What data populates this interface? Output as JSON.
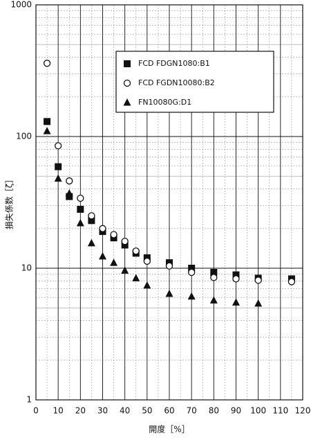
{
  "chart_data": {
    "type": "scatter",
    "log_y": true,
    "grid": true,
    "xlabel": "開度［%］",
    "ylabel": "損失係数［ζ］",
    "xlim": [
      0,
      120
    ],
    "xticks": [
      0,
      10,
      20,
      30,
      40,
      50,
      60,
      70,
      80,
      90,
      100,
      110,
      120
    ],
    "ylim": [
      1,
      1000
    ],
    "yticks": [
      1,
      10,
      100,
      1000
    ],
    "series": [
      {
        "name": "FCD FDGN1080:B1",
        "color": "#111111",
        "marker": "square",
        "x": [
          5,
          10,
          15,
          20,
          25,
          30,
          35,
          40,
          45,
          50,
          60,
          70,
          80,
          90,
          100,
          115
        ],
        "values": [
          130,
          59,
          35,
          28,
          23,
          19,
          17,
          15,
          13,
          12,
          11,
          10,
          9.3,
          8.9,
          8.4,
          8.3
        ]
      },
      {
        "name": "FCD FGDN10080:B2",
        "color": "#111111",
        "marker": "circle",
        "x": [
          5,
          10,
          15,
          20,
          25,
          30,
          35,
          40,
          45,
          50,
          60,
          70,
          80,
          90,
          100,
          115
        ],
        "values": [
          360,
          85,
          46,
          34,
          25,
          20,
          18,
          16,
          13.5,
          11.3,
          10.4,
          9.3,
          8.5,
          8.3,
          8.1,
          7.9
        ]
      },
      {
        "name": "FN10080G:D1",
        "color": "#111111",
        "marker": "triangle",
        "x": [
          5,
          10,
          15,
          20,
          25,
          30,
          35,
          40,
          45,
          50,
          60,
          70,
          80,
          90,
          100
        ],
        "values": [
          110,
          48,
          37,
          22,
          15.5,
          12.3,
          11,
          9.6,
          8.4,
          7.4,
          6.4,
          6.1,
          5.7,
          5.5,
          5.4
        ]
      }
    ]
  }
}
